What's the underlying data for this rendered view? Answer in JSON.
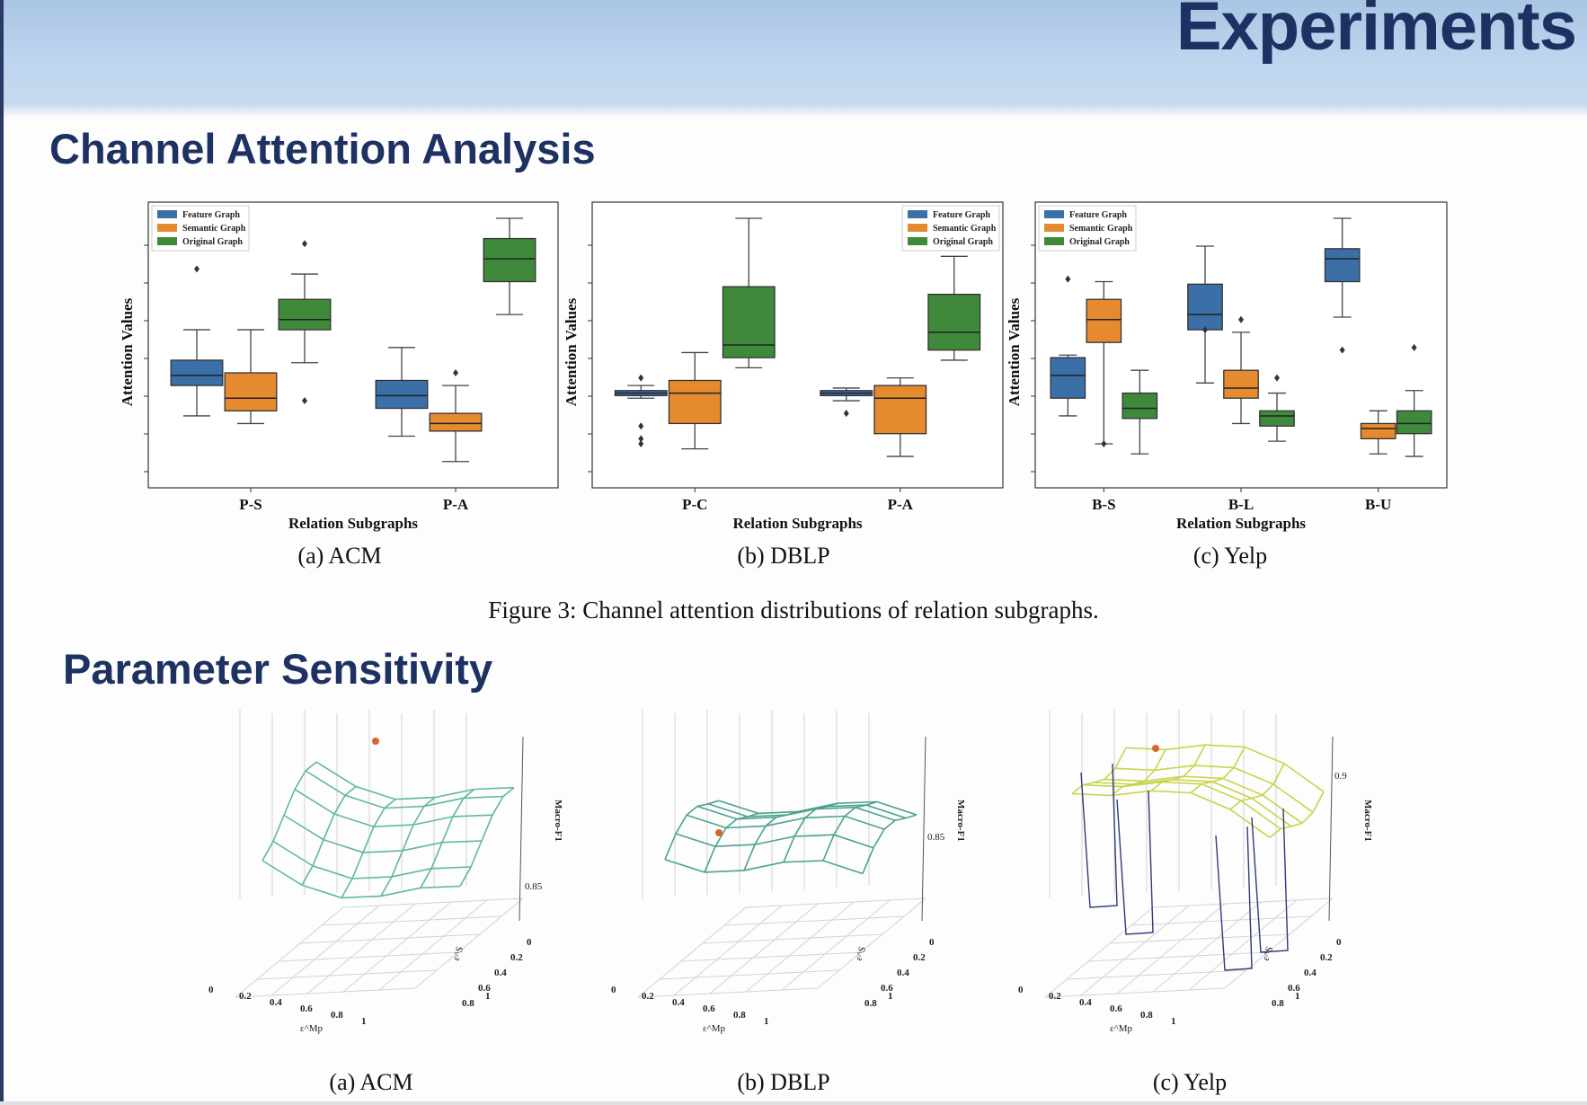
{
  "header": {
    "title": "Experiments"
  },
  "sections": {
    "channel_attention": "Channel Attention Analysis",
    "parameter_sensitivity": "Parameter Sensitivity"
  },
  "figure3": {
    "caption": "Figure 3: Channel attention distributions of relation subgraphs.",
    "subcaptions": [
      "(a) ACM",
      "(b) DBLP",
      "(c) Yelp"
    ],
    "legend": [
      "Feature Graph",
      "Semantic Graph",
      "Original Graph"
    ],
    "ylabel": "Attention Values",
    "xlabel": "Relation Subgraphs"
  },
  "figure4": {
    "subcaptions": [
      "(a) ACM",
      "(b) DBLP",
      "(c) Yelp"
    ],
    "zlabel": "Macro-F1",
    "xlabel": "ε^Mp",
    "ylabel": "ε^S",
    "ticks": [
      "0",
      "0.2",
      "0.4",
      "0.6",
      "0.8",
      "1"
    ]
  },
  "colors": {
    "feature": "#3a6fa8",
    "semantic": "#e58a2e",
    "original": "#3e8a3a",
    "title": "#1d3263"
  },
  "chart_data": [
    {
      "type": "box",
      "title": "(a) ACM",
      "xlabel": "Relation Subgraphs",
      "ylabel": "Attention Values",
      "legend_position": "top-left",
      "categories": [
        "P-S",
        "P-A"
      ],
      "series": [
        {
          "name": "Feature Graph",
          "boxes": [
            {
              "whislo": 0.22,
              "q1": 0.34,
              "med": 0.38,
              "q3": 0.44,
              "whishi": 0.56,
              "fliers": [
                0.8
              ]
            },
            {
              "whislo": 0.14,
              "q1": 0.25,
              "med": 0.3,
              "q3": 0.36,
              "whishi": 0.49,
              "fliers": []
            }
          ]
        },
        {
          "name": "Semantic Graph",
          "boxes": [
            {
              "whislo": 0.19,
              "q1": 0.24,
              "med": 0.29,
              "q3": 0.39,
              "whishi": 0.56,
              "fliers": []
            },
            {
              "whislo": 0.04,
              "q1": 0.16,
              "med": 0.19,
              "q3": 0.23,
              "whishi": 0.34,
              "fliers": [
                0.39
              ]
            }
          ]
        },
        {
          "name": "Original Graph",
          "boxes": [
            {
              "whislo": 0.43,
              "q1": 0.56,
              "med": 0.6,
              "q3": 0.68,
              "whishi": 0.78,
              "fliers": [
                0.9,
                0.28
              ]
            },
            {
              "whislo": 0.62,
              "q1": 0.75,
              "med": 0.84,
              "q3": 0.92,
              "whishi": 1.0,
              "fliers": []
            }
          ]
        }
      ]
    },
    {
      "type": "box",
      "title": "(b) DBLP",
      "xlabel": "Relation Subgraphs",
      "ylabel": "Attention Values",
      "legend_position": "top-right",
      "categories": [
        "P-C",
        "P-A"
      ],
      "series": [
        {
          "name": "Feature Graph",
          "boxes": [
            {
              "whislo": 0.29,
              "q1": 0.3,
              "med": 0.31,
              "q3": 0.32,
              "whishi": 0.34,
              "fliers": [
                0.37,
                0.18,
                0.13,
                0.11
              ]
            },
            {
              "whislo": 0.28,
              "q1": 0.3,
              "med": 0.31,
              "q3": 0.32,
              "whishi": 0.33,
              "fliers": [
                0.23
              ]
            }
          ]
        },
        {
          "name": "Semantic Graph",
          "boxes": [
            {
              "whislo": 0.09,
              "q1": 0.19,
              "med": 0.31,
              "q3": 0.36,
              "whishi": 0.47,
              "fliers": []
            },
            {
              "whislo": 0.06,
              "q1": 0.15,
              "med": 0.29,
              "q3": 0.34,
              "whishi": 0.37,
              "fliers": []
            }
          ]
        },
        {
          "name": "Original Graph",
          "boxes": [
            {
              "whislo": 0.41,
              "q1": 0.45,
              "med": 0.5,
              "q3": 0.73,
              "whishi": 1.0,
              "fliers": []
            },
            {
              "whislo": 0.44,
              "q1": 0.48,
              "med": 0.55,
              "q3": 0.7,
              "whishi": 0.85,
              "fliers": []
            }
          ]
        }
      ]
    },
    {
      "type": "box",
      "title": "(c) Yelp",
      "xlabel": "Relation Subgraphs",
      "ylabel": "Attention Values",
      "legend_position": "top-left",
      "categories": [
        "B-S",
        "B-L",
        "B-U"
      ],
      "series": [
        {
          "name": "Feature Graph",
          "boxes": [
            {
              "whislo": 0.22,
              "q1": 0.29,
              "med": 0.38,
              "q3": 0.45,
              "whishi": 0.46,
              "fliers": [
                0.76
              ]
            },
            {
              "whislo": 0.35,
              "q1": 0.56,
              "med": 0.62,
              "q3": 0.74,
              "whishi": 0.89,
              "fliers": [
                0.56
              ]
            },
            {
              "whislo": 0.61,
              "q1": 0.75,
              "med": 0.84,
              "q3": 0.88,
              "whishi": 1.0,
              "fliers": [
                0.48
              ]
            }
          ]
        },
        {
          "name": "Semantic Graph",
          "boxes": [
            {
              "whislo": 0.11,
              "q1": 0.51,
              "med": 0.6,
              "q3": 0.68,
              "whishi": 0.75,
              "fliers": [
                0.11
              ]
            },
            {
              "whislo": 0.19,
              "q1": 0.29,
              "med": 0.33,
              "q3": 0.4,
              "whishi": 0.55,
              "fliers": [
                0.6
              ]
            },
            {
              "whislo": 0.07,
              "q1": 0.13,
              "med": 0.17,
              "q3": 0.19,
              "whishi": 0.24,
              "fliers": []
            }
          ]
        },
        {
          "name": "Original Graph",
          "boxes": [
            {
              "whislo": 0.07,
              "q1": 0.21,
              "med": 0.25,
              "q3": 0.31,
              "whishi": 0.4,
              "fliers": []
            },
            {
              "whislo": 0.12,
              "q1": 0.18,
              "med": 0.22,
              "q3": 0.24,
              "whishi": 0.31,
              "fliers": [
                0.37
              ]
            },
            {
              "whislo": 0.06,
              "q1": 0.15,
              "med": 0.19,
              "q3": 0.24,
              "whishi": 0.32,
              "fliers": [
                0.49
              ]
            }
          ]
        }
      ]
    }
  ]
}
